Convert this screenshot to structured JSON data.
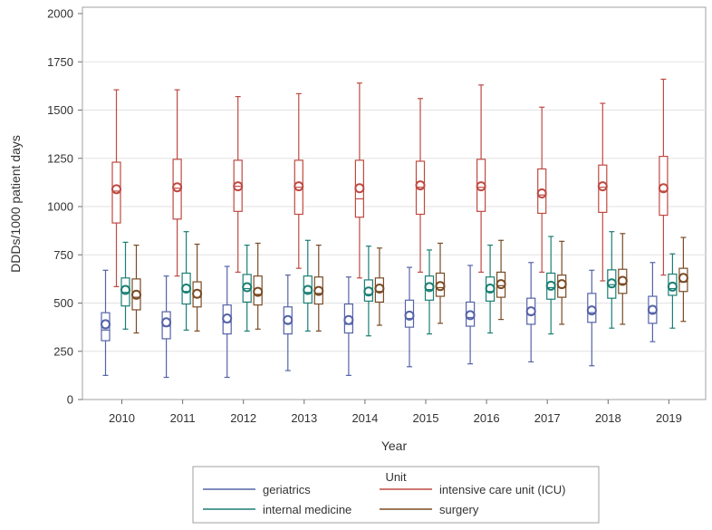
{
  "chart_data": {
    "type": "box",
    "xlabel": "Year",
    "ylabel": "DDDs/1000 patient days",
    "ylim": [
      0,
      2000
    ],
    "yticks": [
      0,
      250,
      500,
      750,
      1000,
      1250,
      1500,
      1750,
      2000
    ],
    "grid": "horizontal",
    "categories": [
      "2010",
      "2011",
      "2012",
      "2013",
      "2014",
      "2015",
      "2016",
      "2017",
      "2018",
      "2019"
    ],
    "legend": {
      "title": "Unit",
      "position": "bottom-center"
    },
    "series": [
      {
        "name": "geriatrics",
        "color": "#5563a8",
        "boxes": [
          {
            "min": 125,
            "q1": 305,
            "median": 360,
            "mean": 390,
            "q3": 450,
            "max": 670
          },
          {
            "min": 115,
            "q1": 315,
            "median": 380,
            "mean": 400,
            "q3": 455,
            "max": 640
          },
          {
            "min": 115,
            "q1": 340,
            "median": 400,
            "mean": 420,
            "q3": 490,
            "max": 690
          },
          {
            "min": 150,
            "q1": 340,
            "median": 395,
            "mean": 412,
            "q3": 480,
            "max": 645
          },
          {
            "min": 125,
            "q1": 345,
            "median": 390,
            "mean": 412,
            "q3": 495,
            "max": 635
          },
          {
            "min": 170,
            "q1": 375,
            "median": 420,
            "mean": 435,
            "q3": 515,
            "max": 685
          },
          {
            "min": 185,
            "q1": 380,
            "median": 425,
            "mean": 437,
            "q3": 505,
            "max": 695
          },
          {
            "min": 195,
            "q1": 390,
            "median": 440,
            "mean": 457,
            "q3": 525,
            "max": 710
          },
          {
            "min": 175,
            "q1": 400,
            "median": 450,
            "mean": 462,
            "q3": 550,
            "max": 670
          },
          {
            "min": 300,
            "q1": 395,
            "median": 450,
            "mean": 465,
            "q3": 535,
            "max": 710
          }
        ]
      },
      {
        "name": "internal medicine",
        "color": "#1b7f74",
        "boxes": [
          {
            "min": 365,
            "q1": 485,
            "median": 555,
            "mean": 568,
            "q3": 630,
            "max": 815
          },
          {
            "min": 360,
            "q1": 495,
            "median": 560,
            "mean": 575,
            "q3": 655,
            "max": 870
          },
          {
            "min": 355,
            "q1": 505,
            "median": 575,
            "mean": 582,
            "q3": 648,
            "max": 800
          },
          {
            "min": 355,
            "q1": 500,
            "median": 555,
            "mean": 568,
            "q3": 640,
            "max": 825
          },
          {
            "min": 330,
            "q1": 510,
            "median": 545,
            "mean": 560,
            "q3": 620,
            "max": 795
          },
          {
            "min": 340,
            "q1": 515,
            "median": 570,
            "mean": 583,
            "q3": 640,
            "max": 775
          },
          {
            "min": 345,
            "q1": 510,
            "median": 560,
            "mean": 575,
            "q3": 635,
            "max": 800
          },
          {
            "min": 340,
            "q1": 520,
            "median": 580,
            "mean": 590,
            "q3": 655,
            "max": 845
          },
          {
            "min": 370,
            "q1": 525,
            "median": 595,
            "mean": 602,
            "q3": 672,
            "max": 870
          },
          {
            "min": 370,
            "q1": 540,
            "median": 575,
            "mean": 585,
            "q3": 650,
            "max": 755
          }
        ]
      },
      {
        "name": "intensive care unit (ICU)",
        "color": "#bf4a42",
        "boxes": [
          {
            "min": 585,
            "q1": 915,
            "median": 1080,
            "mean": 1090,
            "q3": 1230,
            "max": 1605
          },
          {
            "min": 640,
            "q1": 935,
            "median": 1095,
            "mean": 1100,
            "q3": 1245,
            "max": 1605
          },
          {
            "min": 660,
            "q1": 975,
            "median": 1105,
            "mean": 1105,
            "q3": 1240,
            "max": 1570
          },
          {
            "min": 680,
            "q1": 960,
            "median": 1100,
            "mean": 1105,
            "q3": 1240,
            "max": 1585
          },
          {
            "min": 630,
            "q1": 945,
            "median": 1040,
            "mean": 1095,
            "q3": 1240,
            "max": 1640
          },
          {
            "min": 660,
            "q1": 960,
            "median": 1100,
            "mean": 1110,
            "q3": 1235,
            "max": 1560
          },
          {
            "min": 660,
            "q1": 975,
            "median": 1100,
            "mean": 1105,
            "q3": 1245,
            "max": 1630
          },
          {
            "min": 660,
            "q1": 965,
            "median": 1060,
            "mean": 1068,
            "q3": 1195,
            "max": 1515
          },
          {
            "min": 615,
            "q1": 970,
            "median": 1100,
            "mean": 1105,
            "q3": 1215,
            "max": 1535
          },
          {
            "min": 645,
            "q1": 955,
            "median": 1080,
            "mean": 1095,
            "q3": 1260,
            "max": 1660
          }
        ]
      },
      {
        "name": "surgery",
        "color": "#7a4b25",
        "boxes": [
          {
            "min": 345,
            "q1": 465,
            "median": 530,
            "mean": 543,
            "q3": 625,
            "max": 800
          },
          {
            "min": 355,
            "q1": 480,
            "median": 530,
            "mean": 548,
            "q3": 610,
            "max": 805
          },
          {
            "min": 365,
            "q1": 490,
            "median": 545,
            "mean": 558,
            "q3": 640,
            "max": 810
          },
          {
            "min": 355,
            "q1": 495,
            "median": 550,
            "mean": 563,
            "q3": 635,
            "max": 800
          },
          {
            "min": 385,
            "q1": 505,
            "median": 560,
            "mean": 575,
            "q3": 630,
            "max": 785
          },
          {
            "min": 395,
            "q1": 535,
            "median": 580,
            "mean": 588,
            "q3": 655,
            "max": 810
          },
          {
            "min": 415,
            "q1": 530,
            "median": 590,
            "mean": 598,
            "q3": 660,
            "max": 825
          },
          {
            "min": 390,
            "q1": 530,
            "median": 580,
            "mean": 598,
            "q3": 645,
            "max": 820
          },
          {
            "min": 390,
            "q1": 550,
            "median": 600,
            "mean": 615,
            "q3": 675,
            "max": 860
          },
          {
            "min": 405,
            "q1": 560,
            "median": 610,
            "mean": 630,
            "q3": 680,
            "max": 840
          }
        ]
      }
    ]
  }
}
